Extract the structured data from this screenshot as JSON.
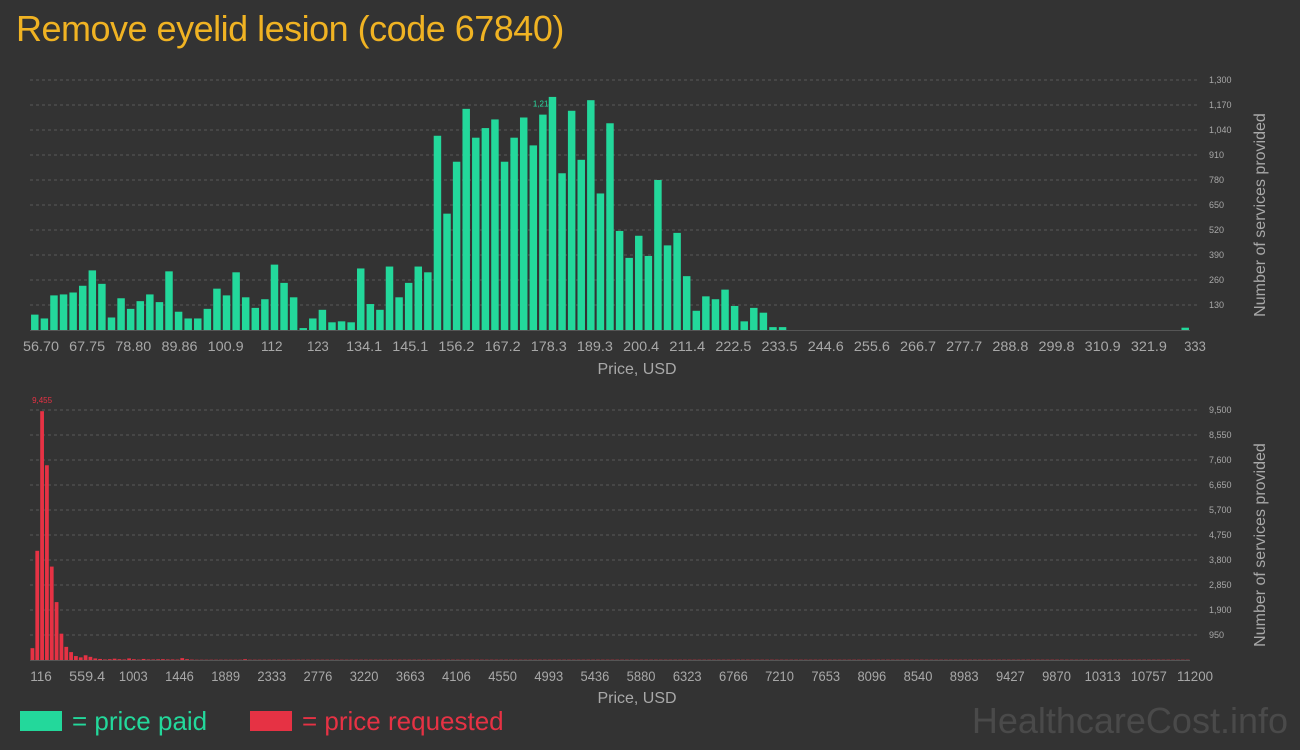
{
  "title": "Remove eyelid lesion (code 67840)",
  "watermark": "HealthcareCost.info",
  "legend": {
    "paid_label": "= price paid",
    "requested_label": "= price requested"
  },
  "colors": {
    "background": "#333333",
    "title": "#f0b323",
    "paid": "#23d89b",
    "requested": "#e63244",
    "grid": "#5a5a5a",
    "axis_text": "#a8a8a8"
  },
  "chart_data": [
    {
      "type": "bar",
      "series": [
        {
          "name": "price paid",
          "color": "#23d89b"
        }
      ],
      "xlabel": "Price, USD",
      "ylabel": "Number of services provided",
      "ylim": [
        0,
        1300
      ],
      "yticks": [
        "130",
        "260",
        "390",
        "520",
        "650",
        "780",
        "910",
        "1,040",
        "1,170",
        "1,300"
      ],
      "xticks": [
        "56.70",
        "67.75",
        "78.80",
        "89.86",
        "100.9",
        "112",
        "123",
        "134.1",
        "145.1",
        "156.2",
        "167.2",
        "178.3",
        "189.3",
        "200.4",
        "211.4",
        "222.5",
        "233.5",
        "244.6",
        "255.6",
        "266.7",
        "277.7",
        "288.8",
        "299.8",
        "310.9",
        "321.9",
        "333"
      ],
      "x_range": [
        56.7,
        333
      ],
      "peak_label": "1,212",
      "peak_index": 53,
      "grid": true,
      "values": [
        80,
        60,
        180,
        185,
        195,
        230,
        310,
        240,
        65,
        165,
        110,
        150,
        185,
        145,
        305,
        95,
        60,
        60,
        110,
        215,
        180,
        300,
        170,
        115,
        160,
        340,
        245,
        170,
        10,
        60,
        105,
        40,
        45,
        40,
        320,
        135,
        105,
        330,
        170,
        245,
        330,
        300,
        1010,
        605,
        875,
        1150,
        1000,
        1050,
        1095,
        875,
        1000,
        1105,
        960,
        1120,
        1212,
        815,
        1140,
        885,
        1195,
        710,
        1075,
        515,
        375,
        490,
        385,
        780,
        440,
        505,
        280,
        100,
        175,
        160,
        210,
        125,
        45,
        115,
        90,
        15,
        15,
        0,
        0,
        0,
        0,
        0,
        0,
        0,
        0,
        0,
        0,
        0,
        0,
        0,
        0,
        0,
        0,
        0,
        0,
        0,
        0,
        0,
        0,
        0,
        0,
        0,
        0,
        0,
        0,
        0,
        0,
        0,
        0,
        0,
        0,
        0,
        0,
        0,
        0,
        0,
        0,
        0,
        12
      ]
    },
    {
      "type": "bar",
      "series": [
        {
          "name": "price requested",
          "color": "#e63244"
        }
      ],
      "xlabel": "Price, USD",
      "ylabel": "Number of services provided",
      "ylim": [
        0,
        9500
      ],
      "yticks": [
        "950",
        "1,900",
        "2,850",
        "3,800",
        "4,750",
        "5,700",
        "6,650",
        "7,600",
        "8,550",
        "9,500"
      ],
      "xticks": [
        "116",
        "559.4",
        "1003",
        "1446",
        "1889",
        "2333",
        "2776",
        "3220",
        "3663",
        "4106",
        "4550",
        "4993",
        "5436",
        "5880",
        "6323",
        "6766",
        "7210",
        "7653",
        "8096",
        "8540",
        "8983",
        "9427",
        "9870",
        "10313",
        "10757",
        "11200"
      ],
      "x_range": [
        116,
        11200
      ],
      "peak_label": "9,455",
      "peak_index": 2,
      "grid": true,
      "values": [
        450,
        4150,
        9455,
        7400,
        3550,
        2200,
        1000,
        500,
        300,
        150,
        100,
        180,
        120,
        60,
        40,
        20,
        30,
        50,
        30,
        20,
        60,
        30,
        15,
        40,
        20,
        20,
        25,
        30,
        20,
        20,
        15,
        70,
        30,
        15,
        10,
        10,
        10,
        10,
        10,
        10,
        10,
        10,
        10,
        10,
        30,
        10,
        10,
        10,
        10,
        10,
        10,
        10,
        10,
        10,
        10,
        10,
        10,
        10,
        10,
        10,
        10,
        10,
        10,
        10,
        10,
        10,
        10,
        10,
        10,
        10,
        10,
        10,
        10,
        10,
        10,
        10,
        10,
        10,
        10,
        10,
        10,
        10,
        10,
        10,
        10,
        10,
        10,
        10,
        10,
        10,
        10,
        10,
        10,
        10,
        10,
        10,
        10,
        10,
        10,
        10,
        10,
        10,
        10,
        10,
        10,
        10,
        10,
        10,
        10,
        10,
        10,
        10,
        10,
        10,
        10,
        10,
        10,
        10,
        10,
        10,
        10,
        10,
        10,
        10,
        10,
        10,
        10,
        10,
        10,
        10,
        10,
        10,
        10,
        10,
        10,
        10,
        10,
        10,
        10,
        10,
        10,
        10,
        10,
        10,
        10,
        10,
        10,
        10,
        10,
        10,
        10,
        10,
        10,
        10,
        10,
        10,
        10,
        10,
        10,
        10,
        10,
        10,
        10,
        10,
        10,
        10,
        10,
        10,
        10,
        10,
        10,
        10,
        10,
        10,
        10,
        10,
        10,
        10,
        10,
        10,
        10,
        10,
        10,
        10,
        10,
        10,
        10,
        10,
        10,
        10,
        10,
        10,
        10,
        10,
        10,
        10,
        10,
        10,
        10,
        10,
        10,
        10,
        10,
        10,
        10,
        10,
        10,
        10,
        10,
        10,
        10,
        10,
        10,
        10,
        10,
        10,
        10,
        10,
        10,
        10,
        10,
        10,
        10,
        10,
        10,
        10,
        10,
        10,
        10,
        10,
        10,
        10,
        10,
        10,
        10,
        10,
        10,
        10,
        10,
        10
      ]
    }
  ]
}
